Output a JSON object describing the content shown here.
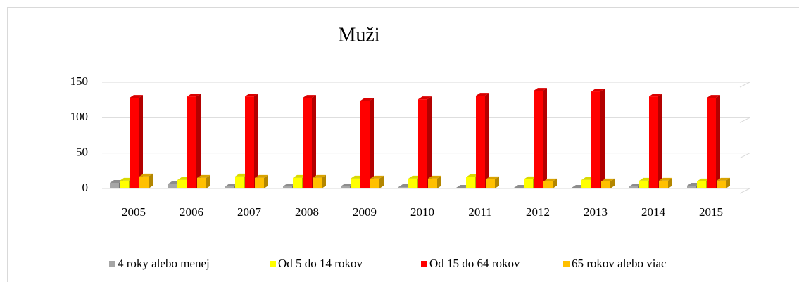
{
  "chart_data": {
    "type": "bar3d",
    "title": "Muži",
    "categories": [
      "2005",
      "2006",
      "2007",
      "2008",
      "2009",
      "2010",
      "2011",
      "2012",
      "2013",
      "2014",
      "2015"
    ],
    "series": [
      {
        "name": "4 roky alebo menej",
        "color": "#a6a6a6",
        "values": [
          8,
          6,
          3,
          3,
          3,
          2,
          1,
          1,
          1,
          3,
          4
        ]
      },
      {
        "name": "Od 5 do 14 rokov",
        "color": "#ffff00",
        "values": [
          11,
          12,
          17,
          15,
          14,
          14,
          16,
          13,
          12,
          11,
          10
        ]
      },
      {
        "name": "Od 15 do 64 rokov",
        "color": "#ff0000",
        "values": [
          128,
          130,
          130,
          128,
          124,
          126,
          131,
          138,
          137,
          130,
          128
        ]
      },
      {
        "name": "65 rokov alebo viac",
        "color": "#ffc000",
        "values": [
          17,
          15,
          15,
          15,
          14,
          14,
          13,
          10,
          10,
          11,
          11
        ]
      }
    ],
    "ylim": [
      0,
      150
    ],
    "yticks": [
      0,
      50,
      100,
      150
    ],
    "grid": true,
    "legend": "bottom"
  }
}
